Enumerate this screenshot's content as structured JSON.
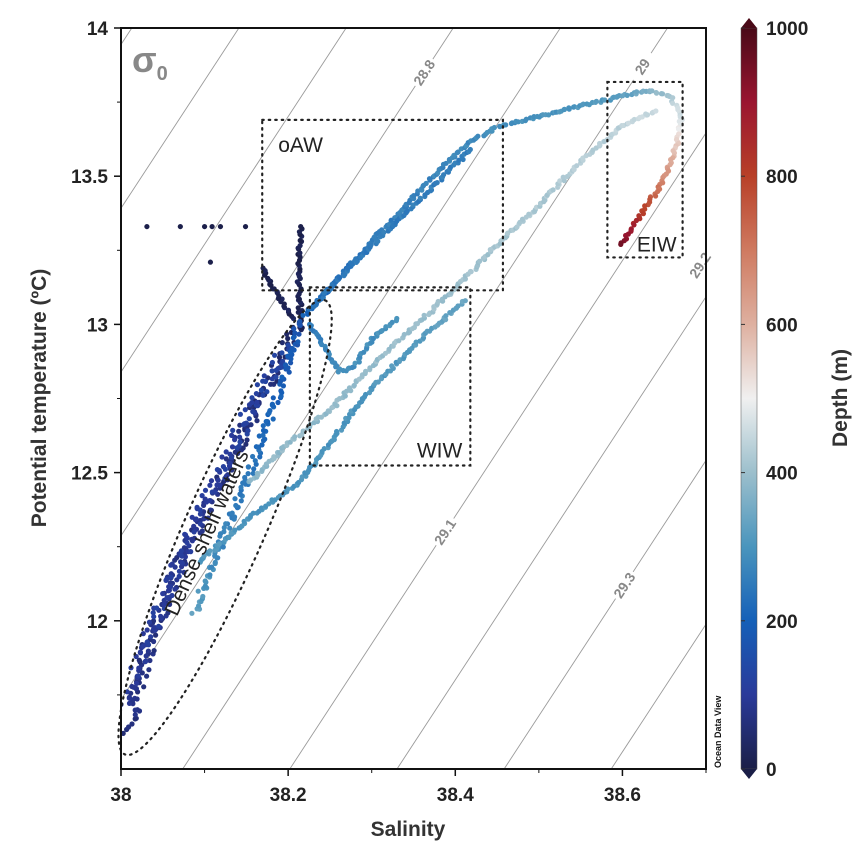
{
  "chart_data": {
    "type": "scatter",
    "title": "",
    "xlabel": "Salinity",
    "ylabel": "Potential temperature (ºC)",
    "xlim": [
      38,
      38.7
    ],
    "ylim": [
      11.5,
      14
    ],
    "xticks": [
      "38",
      "38.2",
      "38.4",
      "38.6"
    ],
    "xtick_values": [
      38,
      38.2,
      38.4,
      38.6
    ],
    "yticks": [
      "12",
      "12.5",
      "13",
      "13.5",
      "14"
    ],
    "ytick_values": [
      12,
      12.5,
      13,
      13.5,
      14
    ],
    "density_symbol": "σ",
    "density_subscript": "0",
    "isopycnal_levels": [
      28.4,
      28.5,
      28.6,
      28.7,
      28.8,
      28.9,
      29.0,
      29.1,
      29.2,
      29.3,
      29.4,
      29.5,
      29.6
    ],
    "isopycnal_labels": [
      "28.8",
      "29",
      "29.1",
      "29.2",
      "29.3"
    ],
    "colorbar": {
      "label": "Depth (m)",
      "range": [
        0,
        1000
      ],
      "ticks": [
        "0",
        "200",
        "400",
        "600",
        "800",
        "1000"
      ],
      "tick_values": [
        0,
        200,
        400,
        600,
        800,
        1000
      ],
      "colors": [
        "#1b1f47",
        "#2a3a9a",
        "#1560b8",
        "#4a95bd",
        "#9cbfcc",
        "#f0f0f0",
        "#deb0a0",
        "#cf7a60",
        "#b84028",
        "#9a1530",
        "#4a0a18"
      ]
    },
    "regions": [
      {
        "name": "oAW",
        "shape": "box",
        "S": [
          38.169,
          38.457
        ],
        "T": [
          13.115,
          13.69
        ]
      },
      {
        "name": "WIW",
        "shape": "box",
        "S": [
          38.226,
          38.418
        ],
        "T": [
          12.524,
          13.125
        ]
      },
      {
        "name": "EIW",
        "shape": "box",
        "S": [
          38.582,
          38.672
        ],
        "T": [
          13.226,
          13.818
        ]
      },
      {
        "name": "Dense shelf waters",
        "shape": "ellipse",
        "S": [
          38.0,
          38.23
        ],
        "T": [
          11.58,
          13.05
        ]
      }
    ],
    "tracks": [
      {
        "name": "dense-shelf-core",
        "points": [
          [
            38.011,
            11.63,
            60
          ],
          [
            38.015,
            11.7,
            70
          ],
          [
            38.023,
            11.8,
            65
          ],
          [
            38.035,
            11.93,
            70
          ],
          [
            38.06,
            12.12,
            80
          ],
          [
            38.095,
            12.34,
            75
          ],
          [
            38.125,
            12.51,
            70
          ],
          [
            38.155,
            12.68,
            60
          ],
          [
            38.18,
            12.82,
            50
          ],
          [
            38.202,
            12.95,
            40
          ],
          [
            38.214,
            12.99,
            30
          ]
        ]
      },
      {
        "name": "dense-shelf-edge",
        "points": [
          [
            38.005,
            11.72,
            90
          ],
          [
            38.02,
            11.85,
            100
          ],
          [
            38.045,
            12.03,
            110
          ],
          [
            38.08,
            12.27,
            100
          ],
          [
            38.12,
            12.5,
            110
          ],
          [
            38.16,
            12.74,
            120
          ],
          [
            38.2,
            12.93,
            130
          ]
        ]
      },
      {
        "name": "surface-spike",
        "points": [
          [
            38.215,
            12.99,
            20
          ],
          [
            38.214,
            13.08,
            15
          ],
          [
            38.213,
            13.18,
            10
          ],
          [
            38.214,
            13.26,
            8
          ],
          [
            38.215,
            13.33,
            5
          ]
        ]
      },
      {
        "name": "surface-branch",
        "points": [
          [
            38.205,
            13.02,
            20
          ],
          [
            38.19,
            13.09,
            15
          ],
          [
            38.175,
            13.15,
            10
          ],
          [
            38.17,
            13.19,
            8
          ]
        ]
      },
      {
        "name": "surface-scatter",
        "points": [
          [
            38.031,
            13.33,
            5
          ],
          [
            38.071,
            13.33,
            5
          ],
          [
            38.1,
            13.33,
            5
          ],
          [
            38.109,
            13.33,
            5
          ],
          [
            38.119,
            13.33,
            5
          ],
          [
            38.149,
            13.33,
            5
          ],
          [
            38.107,
            13.21,
            5
          ]
        ]
      },
      {
        "name": "mid-band",
        "points": [
          [
            38.089,
            12.03,
            330
          ],
          [
            38.11,
            12.2,
            280
          ],
          [
            38.14,
            12.4,
            250
          ],
          [
            38.17,
            12.62,
            220
          ],
          [
            38.195,
            12.82,
            190
          ],
          [
            38.214,
            13.01,
            170
          ]
        ]
      },
      {
        "name": "upper-arc",
        "points": [
          [
            38.22,
            13.03,
            200
          ],
          [
            38.28,
            13.22,
            240
          ],
          [
            38.33,
            13.37,
            260
          ],
          [
            38.37,
            13.49,
            270
          ],
          [
            38.418,
            13.62,
            280
          ],
          [
            38.454,
            13.67,
            290
          ],
          [
            38.526,
            13.72,
            300
          ],
          [
            38.598,
            13.77,
            320
          ],
          [
            38.634,
            13.79,
            360
          ],
          [
            38.658,
            13.77,
            420
          ],
          [
            38.67,
            13.69,
            480
          ],
          [
            38.665,
            13.6,
            560
          ],
          [
            38.652,
            13.5,
            650
          ],
          [
            38.634,
            13.42,
            760
          ],
          [
            38.615,
            13.34,
            860
          ],
          [
            38.598,
            13.27,
            950
          ]
        ]
      },
      {
        "name": "upper-inner",
        "points": [
          [
            38.226,
            13.05,
            230
          ],
          [
            38.29,
            13.24,
            250
          ],
          [
            38.358,
            13.42,
            255
          ],
          [
            38.418,
            13.59,
            260
          ]
        ]
      },
      {
        "name": "light-branch",
        "points": [
          [
            38.155,
            12.47,
            380
          ],
          [
            38.2,
            12.6,
            390
          ],
          [
            38.25,
            12.71,
            390
          ],
          [
            38.3,
            12.86,
            395
          ],
          [
            38.358,
            13.01,
            400
          ],
          [
            38.41,
            13.15,
            405
          ],
          [
            38.454,
            13.28,
            410
          ],
          [
            38.5,
            13.4,
            420
          ],
          [
            38.55,
            13.55,
            430
          ],
          [
            38.6,
            13.67,
            440
          ],
          [
            38.64,
            13.72,
            460
          ]
        ]
      },
      {
        "name": "lower-branch",
        "points": [
          [
            38.095,
            12.2,
            310
          ],
          [
            38.15,
            12.34,
            300
          ],
          [
            38.214,
            12.47,
            300
          ],
          [
            38.25,
            12.6,
            300
          ],
          [
            38.286,
            12.74,
            300
          ],
          [
            38.33,
            12.87,
            310
          ],
          [
            38.37,
            12.98,
            320
          ],
          [
            38.412,
            13.08,
            340
          ]
        ]
      },
      {
        "name": "wiw-loop",
        "points": [
          [
            38.225,
            13.0,
            250
          ],
          [
            38.245,
            12.92,
            270
          ],
          [
            38.262,
            12.84,
            280
          ],
          [
            38.28,
            12.86,
            290
          ],
          [
            38.3,
            12.95,
            290
          ],
          [
            38.33,
            13.02,
            300
          ]
        ]
      }
    ]
  }
}
